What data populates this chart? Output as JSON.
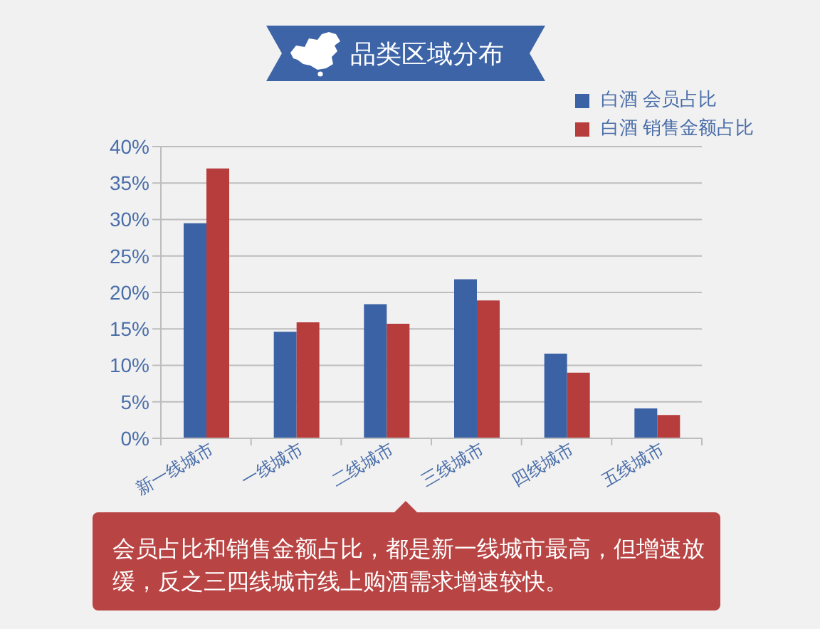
{
  "chart_data": {
    "type": "bar",
    "title": "品类区域分布",
    "categories": [
      "新一线城市",
      "一线城市",
      "二线城市",
      "三线城市",
      "四线城市",
      "五线城市"
    ],
    "series": [
      {
        "name": "白酒 会员占比",
        "color": "#3b62a5",
        "values": [
          29.5,
          14.6,
          18.4,
          21.8,
          11.6,
          4.1
        ]
      },
      {
        "name": "白酒 销售金额占比",
        "color": "#b73c3c",
        "values": [
          37.0,
          15.9,
          15.7,
          18.9,
          9.0,
          3.2
        ]
      }
    ],
    "ylim": [
      0,
      40
    ],
    "yticks": [
      {
        "value": 0,
        "label": "0%"
      },
      {
        "value": 5,
        "label": "5%"
      },
      {
        "value": 10,
        "label": "10%"
      },
      {
        "value": 15,
        "label": "15%"
      },
      {
        "value": 20,
        "label": "20%"
      },
      {
        "value": 25,
        "label": "25%"
      },
      {
        "value": 30,
        "label": "30%"
      },
      {
        "value": 35,
        "label": "35%"
      },
      {
        "value": 40,
        "label": "40%"
      }
    ],
    "grid": "y",
    "legend": "top right",
    "annotations": [
      "会员占比和销售金额占比，都是新一线城市最高，但增速放缓，反之三四线城市线上购酒需求增速较快。"
    ]
  }
}
